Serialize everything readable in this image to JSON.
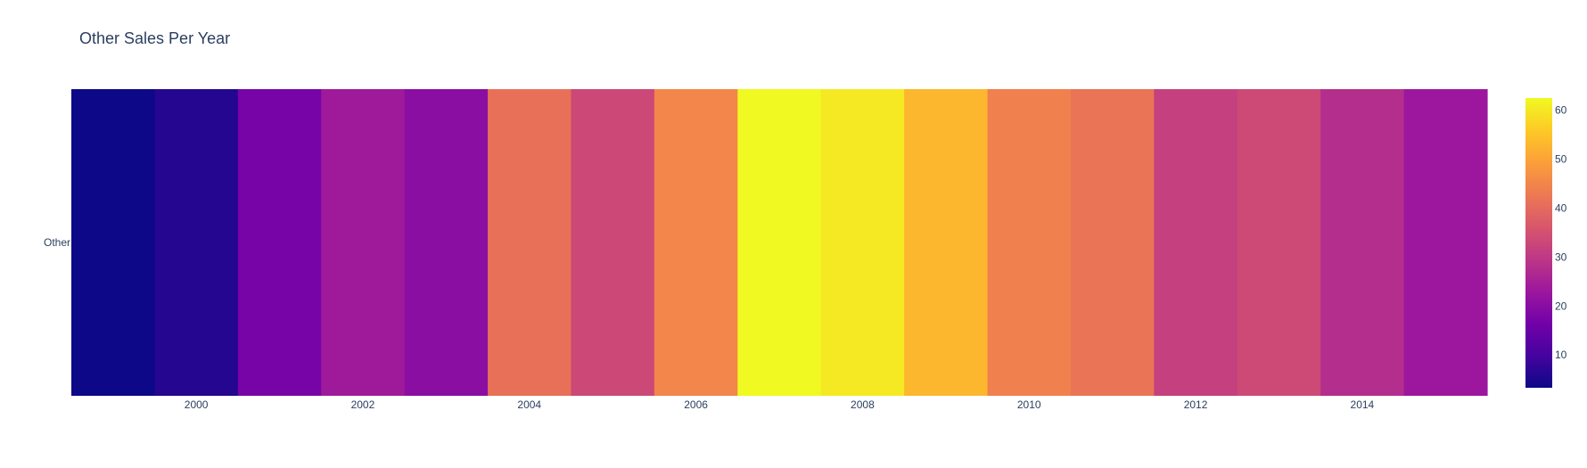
{
  "chart_data": {
    "type": "heatmap",
    "title": "Other Sales Per Year",
    "xlabel": "",
    "ylabel": "",
    "y_categories": [
      "Other"
    ],
    "x": [
      1999,
      2000,
      2001,
      2002,
      2003,
      2004,
      2005,
      2006,
      2007,
      2008,
      2009,
      2010,
      2011,
      2012,
      2013,
      2014,
      2015
    ],
    "values": [
      [
        3.3,
        5.9,
        17.3,
        23.7,
        20.2,
        41.1,
        33.2,
        45.0,
        62.5,
        60.3,
        53.0,
        44.0,
        41.9,
        31.5,
        33.4,
        27.8,
        23.0
      ]
    ],
    "x_tick_labels": [
      "2000",
      "2002",
      "2004",
      "2006",
      "2008",
      "2010",
      "2012",
      "2014"
    ],
    "x_tick_values": [
      2000,
      2002,
      2004,
      2006,
      2008,
      2010,
      2012,
      2014
    ],
    "colorscale": "plasma",
    "colorbar": {
      "range": [
        3.3,
        62.5
      ],
      "tick_values": [
        10,
        20,
        30,
        40,
        50,
        60
      ],
      "tick_labels": [
        "10",
        "20",
        "30",
        "40",
        "50",
        "60"
      ]
    },
    "grid": false
  }
}
